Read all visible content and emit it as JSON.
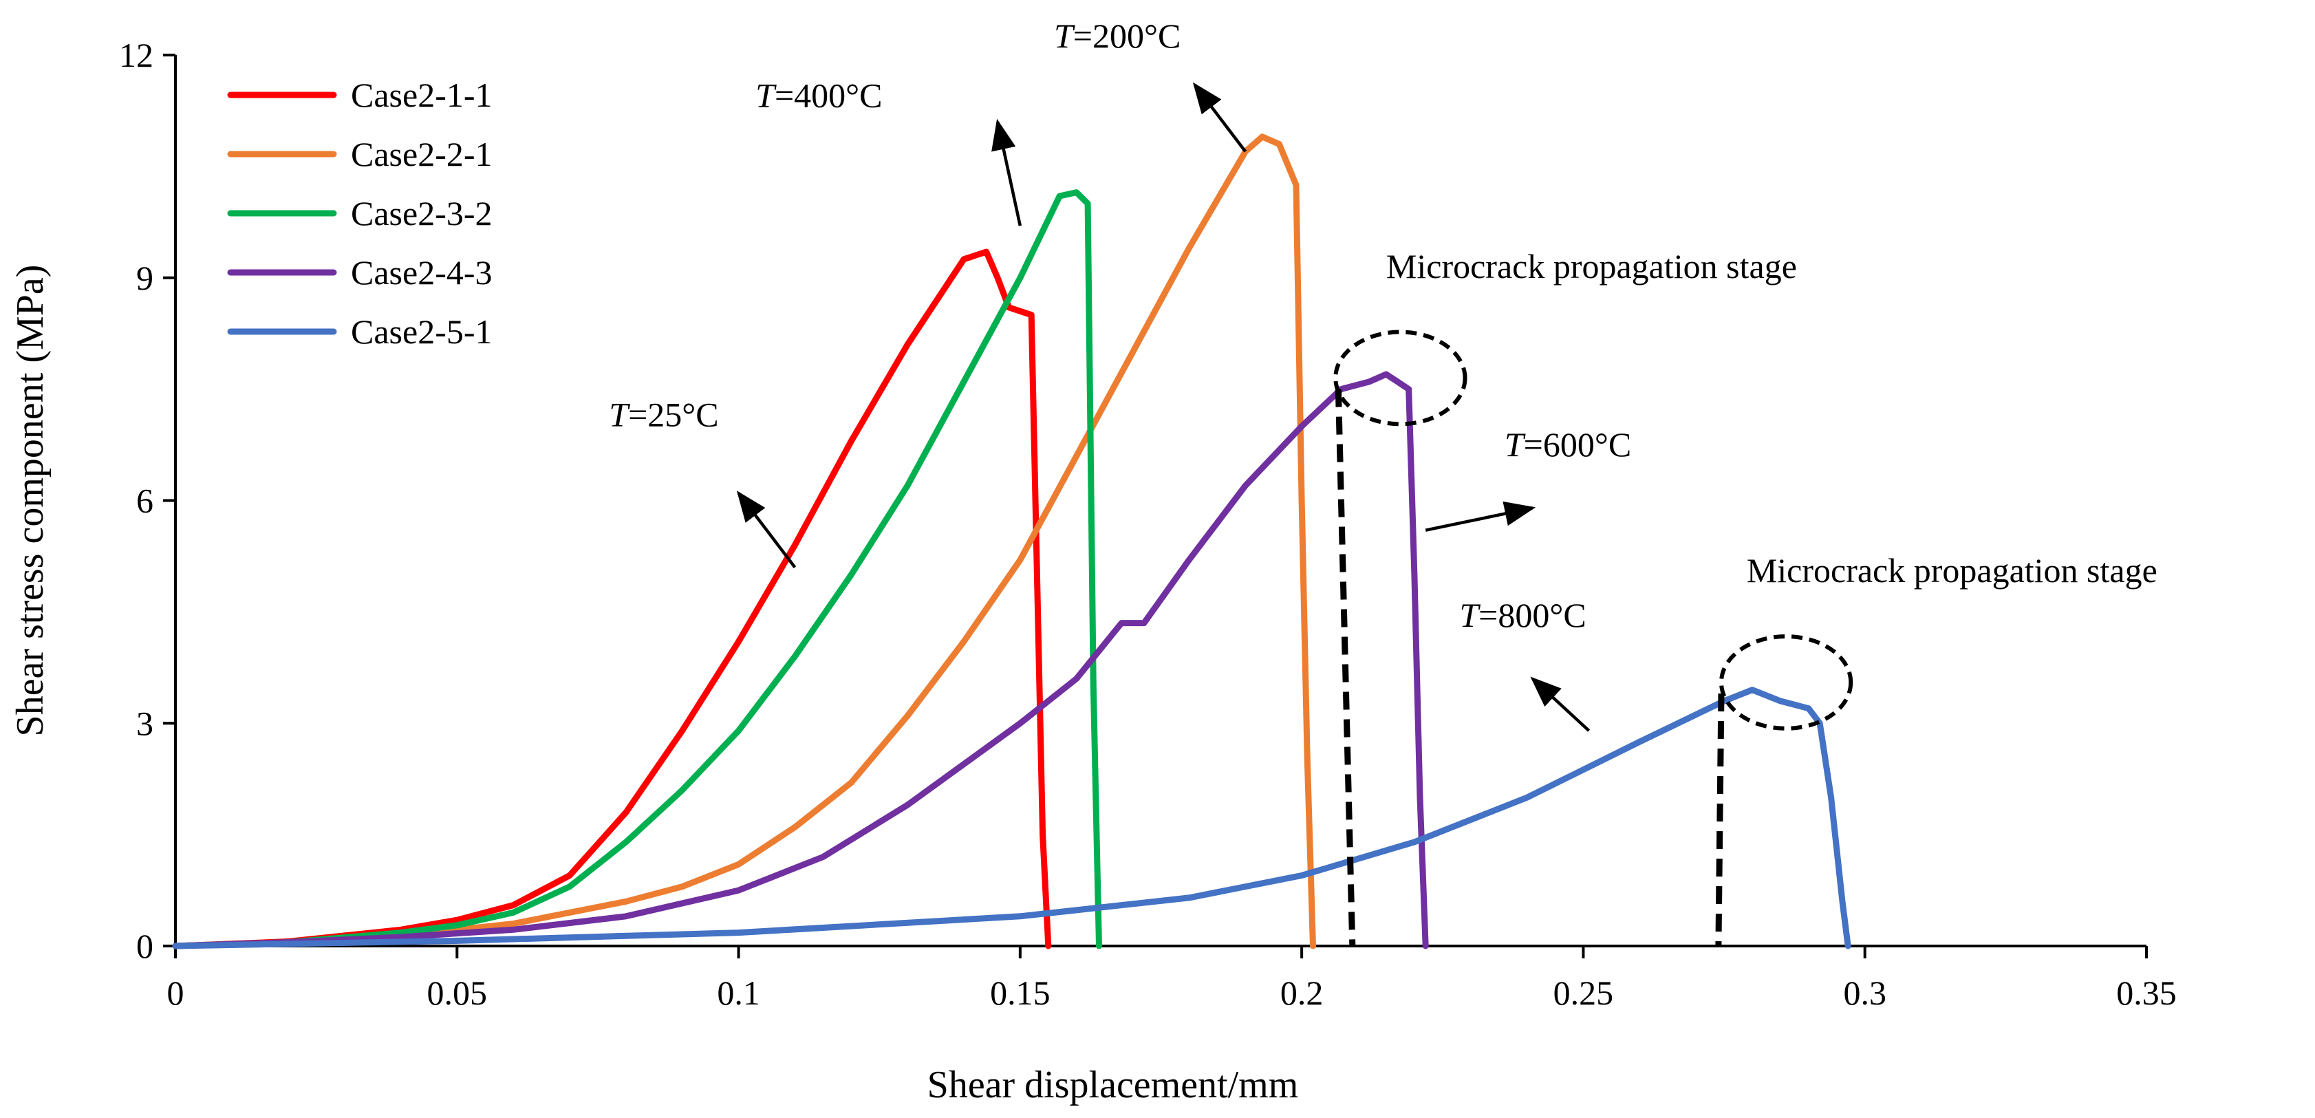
{
  "chart_data": {
    "type": "line",
    "xlabel": "Shear displacement/mm",
    "ylabel": "Shear stress component (MPa)",
    "xlim": [
      0,
      0.35
    ],
    "ylim": [
      0,
      12
    ],
    "xticks": [
      0,
      0.05,
      0.1,
      0.15,
      0.2,
      0.25,
      0.3,
      0.35
    ],
    "xtick_labels": [
      "0",
      "0.05",
      "0.1",
      "0.15",
      "0.2",
      "0.25",
      "0.3",
      "0.35"
    ],
    "yticks": [
      0,
      3,
      6,
      9,
      12
    ],
    "ytick_labels": [
      "0",
      "3",
      "6",
      "9",
      "12"
    ],
    "grid": false,
    "legend_position": "top-left",
    "series": [
      {
        "name": "Case2-1-1",
        "color": "#ff0000",
        "x": [
          0,
          0.02,
          0.04,
          0.05,
          0.06,
          0.07,
          0.08,
          0.09,
          0.1,
          0.11,
          0.12,
          0.13,
          0.14,
          0.142,
          0.144,
          0.146,
          0.148,
          0.152,
          0.153,
          0.154,
          0.155
        ],
        "y": [
          0,
          0.06,
          0.22,
          0.35,
          0.55,
          0.95,
          1.8,
          2.9,
          4.1,
          5.4,
          6.8,
          8.1,
          9.25,
          9.3,
          9.35,
          9.0,
          8.6,
          8.5,
          5.0,
          1.5,
          0
        ]
      },
      {
        "name": "Case2-2-1",
        "color": "#ed7d31",
        "x": [
          0,
          0.02,
          0.04,
          0.06,
          0.08,
          0.09,
          0.1,
          0.11,
          0.12,
          0.13,
          0.14,
          0.15,
          0.16,
          0.17,
          0.18,
          0.19,
          0.193,
          0.196,
          0.199,
          0.2,
          0.201,
          0.202
        ],
        "y": [
          0,
          0.05,
          0.14,
          0.3,
          0.6,
          0.8,
          1.1,
          1.6,
          2.2,
          3.1,
          4.1,
          5.2,
          6.6,
          8.0,
          9.4,
          10.7,
          10.9,
          10.8,
          10.25,
          6.0,
          2.5,
          0
        ]
      },
      {
        "name": "Case2-3-2",
        "color": "#00b050",
        "x": [
          0,
          0.02,
          0.04,
          0.05,
          0.06,
          0.07,
          0.08,
          0.09,
          0.1,
          0.11,
          0.12,
          0.13,
          0.14,
          0.15,
          0.157,
          0.16,
          0.162,
          0.163,
          0.164
        ],
        "y": [
          0,
          0.05,
          0.18,
          0.28,
          0.45,
          0.8,
          1.4,
          2.1,
          2.9,
          3.9,
          5.0,
          6.2,
          7.6,
          9.0,
          10.1,
          10.15,
          10.0,
          3.5,
          0
        ]
      },
      {
        "name": "Case2-4-3",
        "color": "#7030a0",
        "x": [
          0,
          0.02,
          0.04,
          0.06,
          0.08,
          0.1,
          0.115,
          0.13,
          0.15,
          0.16,
          0.168,
          0.172,
          0.18,
          0.19,
          0.2,
          0.207,
          0.212,
          0.215,
          0.217,
          0.219,
          0.22,
          0.221,
          0.222
        ],
        "y": [
          0,
          0.05,
          0.12,
          0.22,
          0.4,
          0.75,
          1.2,
          1.9,
          3.0,
          3.6,
          4.35,
          4.35,
          5.2,
          6.2,
          7.0,
          7.5,
          7.6,
          7.7,
          7.6,
          7.5,
          5.0,
          2.0,
          0
        ]
      },
      {
        "name": "Case2-5-1",
        "color": "#4472c4",
        "x": [
          0,
          0.05,
          0.1,
          0.15,
          0.18,
          0.2,
          0.22,
          0.24,
          0.26,
          0.275,
          0.28,
          0.285,
          0.29,
          0.292,
          0.294,
          0.296,
          0.297
        ],
        "y": [
          0,
          0.07,
          0.18,
          0.4,
          0.65,
          0.95,
          1.4,
          2.0,
          2.75,
          3.3,
          3.45,
          3.3,
          3.2,
          3.0,
          2.0,
          0.6,
          0
        ]
      }
    ],
    "annotations": [
      {
        "id": "t25",
        "text_italic": "T",
        "text_rest": "=25°C",
        "label_x": 0.077,
        "label_y": 7.0,
        "arrow_from": [
          0.11,
          5.1
        ],
        "arrow_to": [
          0.1,
          6.1
        ]
      },
      {
        "id": "t400",
        "text_italic": "T",
        "text_rest": "=400°C",
        "label_x": 0.103,
        "label_y": 11.3,
        "arrow_from": [
          0.15,
          9.7
        ],
        "arrow_to": [
          0.146,
          11.1
        ]
      },
      {
        "id": "t200",
        "text_italic": "T",
        "text_rest": "=200°C",
        "label_x": 0.156,
        "label_y": 12.1,
        "arrow_from": [
          0.19,
          10.7
        ],
        "arrow_to": [
          0.181,
          11.6
        ]
      },
      {
        "id": "t600",
        "text_italic": "T",
        "text_rest": "=600°C",
        "label_x": 0.236,
        "label_y": 6.6,
        "arrow_from": [
          0.222,
          5.6
        ],
        "arrow_to": [
          0.241,
          5.9
        ]
      },
      {
        "id": "t800",
        "text_italic": "T",
        "text_rest": "=800°C",
        "label_x": 0.228,
        "label_y": 4.3,
        "arrow_from": [
          0.251,
          2.9
        ],
        "arrow_to": [
          0.241,
          3.6
        ]
      }
    ],
    "stage_labels": [
      {
        "text": "Microcrack propagation stage",
        "x": 0.215,
        "y": 9.0
      },
      {
        "text": "Microcrack propagation stage",
        "x": 0.279,
        "y": 4.9
      }
    ],
    "highlight_ellipses": [
      {
        "cx": 0.2175,
        "cy": 7.65,
        "rx": 0.0115,
        "ry": 0.62
      },
      {
        "cx": 0.286,
        "cy": 3.55,
        "rx": 0.0115,
        "ry": 0.62
      }
    ],
    "dashed_markers": [
      {
        "x_top": 0.2065,
        "y_top": 7.5,
        "x_bottom": 0.209
      },
      {
        "x_top": 0.2745,
        "y_top": 3.4,
        "x_bottom": 0.274
      }
    ]
  }
}
